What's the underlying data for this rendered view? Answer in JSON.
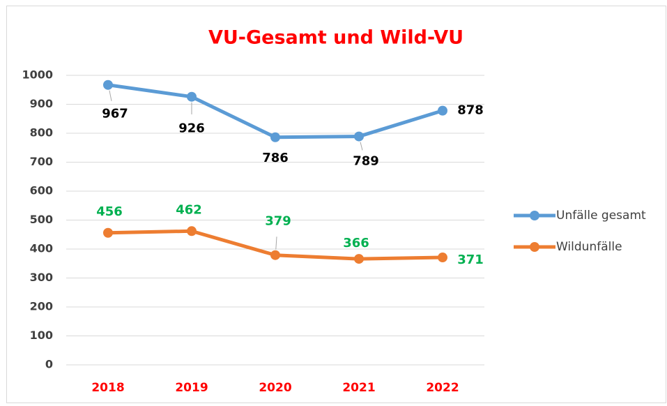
{
  "chart_data": {
    "type": "line",
    "title": "VU-Gesamt und Wild-VU",
    "categories": [
      "2018",
      "2019",
      "2020",
      "2021",
      "2022"
    ],
    "series": [
      {
        "name": "Unfälle gesamt",
        "color": "#5b9bd5",
        "label_color": "#000000",
        "values": [
          967,
          926,
          786,
          789,
          878
        ]
      },
      {
        "name": "Wildunfälle",
        "color": "#ed7d31",
        "label_color": "#00b050",
        "values": [
          456,
          462,
          379,
          366,
          371
        ]
      }
    ],
    "ylim": [
      0,
      1000
    ],
    "yticks": [
      0,
      100,
      200,
      300,
      400,
      500,
      600,
      700,
      800,
      900,
      1000
    ],
    "grid": true,
    "legend": "right",
    "title_color": "#ff0000",
    "category_color": "#ff0000"
  }
}
